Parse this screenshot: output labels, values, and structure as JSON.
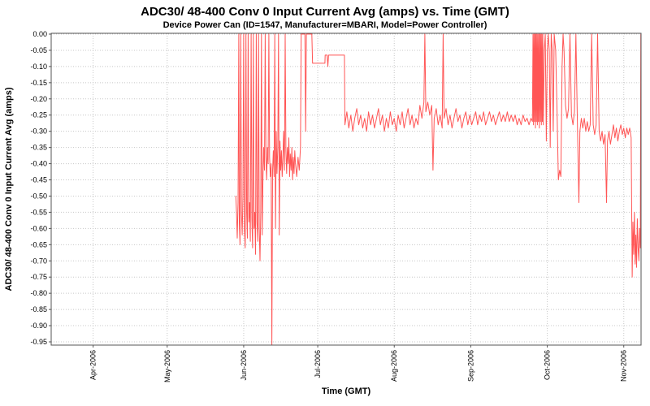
{
  "chart_data": {
    "type": "line",
    "title": "ADC30/ 48-400 Conv 0 Input Current  Avg (amps) vs. Time (GMT)",
    "subtitle": "Device Power Can (ID=1547, Manufacturer=MBARI, Model=Power Controller)",
    "xlabel": "Time (GMT)",
    "ylabel": "ADC30/ 48-400 Conv 0 Input Current  Avg (amps)",
    "legend": "none",
    "grid": "dotted",
    "colors": {
      "series": "#ff5555",
      "grid": "#c8c8c8",
      "axis": "#555555",
      "plot_bg": "#ffffff"
    },
    "x_axis": {
      "unit": "day-of-year-2006",
      "min": 73,
      "max": 312,
      "ticks": [
        {
          "day": 90,
          "label": "Apr-2006"
        },
        {
          "day": 120,
          "label": "May-2006"
        },
        {
          "day": 151,
          "label": "Jun-2006"
        },
        {
          "day": 181,
          "label": "Jul-2006"
        },
        {
          "day": 212,
          "label": "Aug-2006"
        },
        {
          "day": 243,
          "label": "Sep-2006"
        },
        {
          "day": 274,
          "label": "Oct-2006"
        },
        {
          "day": 305,
          "label": "Nov-2006"
        }
      ]
    },
    "y_axis": {
      "min": -0.96,
      "max": 0.0025,
      "ticks": [
        0,
        -0.05,
        -0.1,
        -0.15,
        -0.2,
        -0.25,
        -0.3,
        -0.35,
        -0.4,
        -0.45,
        -0.5,
        -0.55,
        -0.6,
        -0.65,
        -0.7,
        -0.75,
        -0.8,
        -0.85,
        -0.9,
        -0.95
      ],
      "labels": [
        "0.00",
        "-0.05",
        "-0.10",
        "-0.15",
        "-0.20",
        "-0.25",
        "-0.30",
        "-0.35",
        "-0.40",
        "-0.45",
        "-0.50",
        "-0.55",
        "-0.60",
        "-0.65",
        "-0.70",
        "-0.75",
        "-0.80",
        "-0.85",
        "-0.90",
        "-0.95"
      ]
    },
    "points": [
      [
        147.8,
        -0.5
      ],
      [
        148.1,
        -0.55
      ],
      [
        148.4,
        -0.63
      ],
      [
        148.7,
        -0.52
      ],
      [
        149,
        0
      ],
      [
        149.2,
        -0.58
      ],
      [
        149.5,
        -0.65
      ],
      [
        149.8,
        0
      ],
      [
        150.1,
        -0.55
      ],
      [
        150.4,
        -0.62
      ],
      [
        150.7,
        -0.5
      ],
      [
        151,
        0
      ],
      [
        151.3,
        -0.6
      ],
      [
        151.6,
        -0.66
      ],
      [
        151.9,
        0
      ],
      [
        152.2,
        -0.55
      ],
      [
        152.5,
        -0.63
      ],
      [
        152.8,
        0
      ],
      [
        153.1,
        -0.58
      ],
      [
        153.4,
        -0.52
      ],
      [
        153.7,
        -0.64
      ],
      [
        154,
        0
      ],
      [
        154.3,
        -0.57
      ],
      [
        154.6,
        -0.66
      ],
      [
        154.9,
        0
      ],
      [
        155.2,
        -0.6
      ],
      [
        155.5,
        -0.55
      ],
      [
        155.8,
        -0.68
      ],
      [
        156.1,
        0
      ],
      [
        156.4,
        -0.58
      ],
      [
        156.7,
        -0.64
      ],
      [
        157,
        0
      ],
      [
        157.3,
        -0.6
      ],
      [
        157.6,
        -0.7
      ],
      [
        157.9,
        -0.55
      ],
      [
        158.2,
        0
      ],
      [
        158.5,
        -0.62
      ],
      [
        158.8,
        -0.45
      ],
      [
        159.1,
        -0.35
      ],
      [
        159.4,
        -0.42
      ],
      [
        159.7,
        0
      ],
      [
        160,
        -0.38
      ],
      [
        160.3,
        -0.45
      ],
      [
        160.6,
        -0.35
      ],
      [
        160.9,
        -0.4
      ],
      [
        161.2,
        0
      ],
      [
        161.5,
        -0.38
      ],
      [
        161.8,
        -0.44
      ],
      [
        162.1,
        -0.4
      ],
      [
        162.4,
        -0.96
      ],
      [
        162.7,
        -0.42
      ],
      [
        163,
        -0.36
      ],
      [
        163.3,
        -0.44
      ],
      [
        163.6,
        0
      ],
      [
        163.9,
        -0.6
      ],
      [
        164.2,
        -0.3
      ],
      [
        164.5,
        -0.43
      ],
      [
        164.8,
        -0.35
      ],
      [
        165.1,
        0
      ],
      [
        165.4,
        -0.62
      ],
      [
        165.7,
        -0.33
      ],
      [
        166,
        -0.42
      ],
      [
        166.3,
        -0.36
      ],
      [
        166.6,
        -0.44
      ],
      [
        166.9,
        -0.38
      ],
      [
        167.2,
        -0.3
      ],
      [
        167.5,
        -0.42
      ],
      [
        167.8,
        0
      ],
      [
        168.1,
        -0.36
      ],
      [
        168.4,
        -0.43
      ],
      [
        168.7,
        -0.35
      ],
      [
        169,
        -0.4
      ],
      [
        169.3,
        -0.32
      ],
      [
        169.6,
        -0.44
      ],
      [
        169.9,
        -0.37
      ],
      [
        170.2,
        -0.42
      ],
      [
        170.5,
        -0.35
      ],
      [
        170.8,
        -0.45
      ],
      [
        171.1,
        -0.38
      ],
      [
        171.4,
        -0.43
      ],
      [
        171.7,
        -0.36
      ],
      [
        172,
        -0.4
      ],
      [
        172.5,
        -0.44
      ],
      [
        173,
        -0.38
      ],
      [
        173.5,
        -0.42
      ],
      [
        174,
        -0.35
      ],
      [
        174.3,
        0
      ],
      [
        175,
        0
      ],
      [
        175.8,
        0
      ],
      [
        176.1,
        -0.3
      ],
      [
        176.4,
        0
      ],
      [
        177.5,
        0
      ],
      [
        178.6,
        0
      ],
      [
        178.9,
        -0.09
      ],
      [
        180,
        -0.09
      ],
      [
        181.5,
        -0.09
      ],
      [
        183,
        -0.09
      ],
      [
        183.9,
        -0.09
      ],
      [
        184,
        -0.065
      ],
      [
        184.8,
        -0.065
      ],
      [
        185.1,
        -0.1
      ],
      [
        185.4,
        -0.065
      ],
      [
        187,
        -0.065
      ],
      [
        189,
        -0.065
      ],
      [
        191,
        -0.065
      ],
      [
        191.8,
        -0.065
      ],
      [
        192,
        -0.28
      ],
      [
        192.8,
        -0.24
      ],
      [
        193.6,
        -0.29
      ],
      [
        194.4,
        -0.25
      ],
      [
        195.2,
        -0.3
      ],
      [
        196,
        -0.26
      ],
      [
        196.8,
        -0.23
      ],
      [
        197.6,
        -0.28
      ],
      [
        198.4,
        -0.25
      ],
      [
        199.2,
        -0.29
      ],
      [
        200,
        -0.26
      ],
      [
        200.8,
        -0.3
      ],
      [
        201.6,
        -0.24
      ],
      [
        202.4,
        -0.28
      ],
      [
        203.2,
        -0.25
      ],
      [
        204,
        -0.29
      ],
      [
        204.8,
        -0.26
      ],
      [
        205.6,
        -0.23
      ],
      [
        206.4,
        -0.28
      ],
      [
        207.2,
        -0.25
      ],
      [
        208,
        -0.3
      ],
      [
        208.8,
        -0.26
      ],
      [
        209.6,
        -0.29
      ],
      [
        210.4,
        -0.24
      ],
      [
        211.2,
        -0.28
      ],
      [
        212,
        -0.26
      ],
      [
        212.8,
        -0.3
      ],
      [
        213.6,
        -0.25
      ],
      [
        214.4,
        -0.28
      ],
      [
        215.2,
        -0.24
      ],
      [
        216,
        -0.29
      ],
      [
        216.8,
        -0.26
      ],
      [
        217.6,
        -0.23
      ],
      [
        218.4,
        -0.28
      ],
      [
        219.2,
        -0.25
      ],
      [
        220,
        -0.29
      ],
      [
        220.8,
        -0.26
      ],
      [
        221.6,
        -0.28
      ],
      [
        222.4,
        -0.22
      ],
      [
        223.2,
        -0.26
      ],
      [
        224,
        -0.21
      ],
      [
        224.4,
        0
      ],
      [
        224.8,
        -0.24
      ],
      [
        225.6,
        -0.21
      ],
      [
        226.4,
        -0.25
      ],
      [
        227.2,
        -0.22
      ],
      [
        227.7,
        -0.42
      ],
      [
        228.2,
        -0.26
      ],
      [
        229,
        -0.23
      ],
      [
        229.8,
        -0.28
      ],
      [
        230.6,
        -0.25
      ],
      [
        231.4,
        -0.29
      ],
      [
        231.8,
        0
      ],
      [
        232.2,
        -0.26
      ],
      [
        233,
        -0.23
      ],
      [
        233.8,
        -0.28
      ],
      [
        234.6,
        -0.25
      ],
      [
        235.4,
        -0.29
      ],
      [
        236.2,
        -0.26
      ],
      [
        237,
        -0.23
      ],
      [
        237.8,
        -0.27
      ],
      [
        238.6,
        -0.25
      ],
      [
        239.4,
        -0.29
      ],
      [
        240.2,
        -0.26
      ],
      [
        241,
        -0.24
      ],
      [
        241.8,
        -0.28
      ],
      [
        242.6,
        -0.25
      ],
      [
        243.4,
        -0.28
      ],
      [
        244.2,
        -0.26
      ],
      [
        245,
        -0.24
      ],
      [
        245.8,
        -0.28
      ],
      [
        246.6,
        -0.25
      ],
      [
        247.4,
        -0.27
      ],
      [
        248.2,
        -0.24
      ],
      [
        249,
        -0.28
      ],
      [
        249.8,
        -0.26
      ],
      [
        250.6,
        -0.24
      ],
      [
        251.4,
        -0.27
      ],
      [
        252.2,
        -0.25
      ],
      [
        253,
        -0.28
      ],
      [
        253.8,
        -0.26
      ],
      [
        254.6,
        -0.24
      ],
      [
        255.4,
        -0.27
      ],
      [
        256.2,
        -0.25
      ],
      [
        257,
        -0.27
      ],
      [
        257.8,
        -0.24
      ],
      [
        258.6,
        -0.27
      ],
      [
        259.4,
        -0.25
      ],
      [
        260.2,
        -0.27
      ],
      [
        261,
        -0.25
      ],
      [
        261.8,
        -0.28
      ],
      [
        262.6,
        -0.26
      ],
      [
        263.4,
        -0.28
      ],
      [
        264.2,
        -0.25
      ],
      [
        265,
        -0.27
      ],
      [
        265.8,
        -0.26
      ],
      [
        266.6,
        -0.28
      ],
      [
        267.4,
        -0.26
      ],
      [
        268,
        -0.27
      ],
      [
        268.2,
        0
      ],
      [
        268.4,
        -0.28
      ],
      [
        268.6,
        0
      ],
      [
        268.8,
        -0.27
      ],
      [
        269,
        0
      ],
      [
        269.2,
        -0.29
      ],
      [
        269.4,
        0
      ],
      [
        269.6,
        -0.27
      ],
      [
        269.8,
        0
      ],
      [
        270,
        -0.28
      ],
      [
        270.2,
        0
      ],
      [
        270.4,
        -0.27
      ],
      [
        270.6,
        0
      ],
      [
        270.8,
        -0.29
      ],
      [
        271,
        0
      ],
      [
        271.2,
        -0.27
      ],
      [
        271.4,
        0
      ],
      [
        271.6,
        -0.28
      ],
      [
        271.8,
        0
      ],
      [
        272,
        -0.27
      ],
      [
        272.2,
        0
      ],
      [
        272.4,
        -0.28
      ],
      [
        272.8,
        -0.05
      ],
      [
        273.2,
        0
      ],
      [
        273.6,
        -0.33
      ],
      [
        274,
        -0.05
      ],
      [
        274.4,
        0
      ],
      [
        274.8,
        -0.05
      ],
      [
        275.2,
        -0.35
      ],
      [
        275.6,
        0
      ],
      [
        276,
        -0.05
      ],
      [
        276.4,
        -0.3
      ],
      [
        276.8,
        0
      ],
      [
        277.4,
        -0.05
      ],
      [
        278,
        -0.25
      ],
      [
        278.5,
        -0.45
      ],
      [
        279,
        -0.42
      ],
      [
        279.5,
        -0.44
      ],
      [
        280,
        -0.1
      ],
      [
        280.4,
        0
      ],
      [
        280.8,
        -0.05
      ],
      [
        281.4,
        -0.22
      ],
      [
        282,
        -0.26
      ],
      [
        282.6,
        -0.23
      ],
      [
        283.2,
        0
      ],
      [
        283.8,
        -0.25
      ],
      [
        284.4,
        -0.28
      ],
      [
        285,
        -0.24
      ],
      [
        285.6,
        0
      ],
      [
        286.2,
        -0.27
      ],
      [
        286.8,
        -0.52
      ],
      [
        287.2,
        -0.3
      ],
      [
        287.8,
        -0.26
      ],
      [
        288.4,
        -0.29
      ],
      [
        289,
        -0.26
      ],
      [
        289.6,
        -0.3
      ],
      [
        290.2,
        -0.27
      ],
      [
        290.8,
        -0.3
      ],
      [
        291.4,
        -0.28
      ],
      [
        292,
        0
      ],
      [
        292.6,
        -0.28
      ],
      [
        293.2,
        -0.31
      ],
      [
        293.8,
        -0.28
      ],
      [
        294.4,
        0
      ],
      [
        295,
        -0.3
      ],
      [
        295.6,
        -0.33
      ],
      [
        296.2,
        -0.3
      ],
      [
        296.8,
        -0.34
      ],
      [
        297.4,
        -0.31
      ],
      [
        298,
        -0.52
      ],
      [
        298.4,
        -0.33
      ],
      [
        299,
        -0.3
      ],
      [
        299.6,
        -0.34
      ],
      [
        300.2,
        -0.31
      ],
      [
        300.8,
        -0.28
      ],
      [
        301.4,
        -0.32
      ],
      [
        302,
        -0.29
      ],
      [
        302.6,
        -0.33
      ],
      [
        303.2,
        -0.3
      ],
      [
        303.8,
        -0.28
      ],
      [
        304.4,
        -0.31
      ],
      [
        305,
        -0.29
      ],
      [
        305.6,
        -0.32
      ],
      [
        306.2,
        -0.29
      ],
      [
        306.8,
        -0.31
      ],
      [
        307.4,
        -0.29
      ],
      [
        308,
        -0.32
      ],
      [
        308.4,
        -0.75
      ],
      [
        308.7,
        -0.58
      ],
      [
        309,
        -0.68
      ],
      [
        309.3,
        -0.55
      ],
      [
        309.6,
        -0.71
      ],
      [
        309.9,
        -0.62
      ],
      [
        310.2,
        -0.72
      ],
      [
        310.5,
        -0.57
      ],
      [
        310.8,
        -0.66
      ],
      [
        311.1,
        -0.7
      ],
      [
        311.4,
        -0.6
      ],
      [
        311.7,
        -0.66
      ],
      [
        311.9,
        0
      ]
    ]
  }
}
